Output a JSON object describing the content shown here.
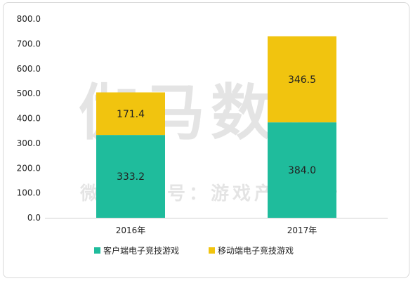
{
  "chart_data": {
    "type": "bar",
    "stacked": true,
    "categories": [
      "2016年",
      "2017年"
    ],
    "series": [
      {
        "name": "客户端电子竞技游戏",
        "values": [
          333.2,
          384.0
        ],
        "labels": [
          "333.2",
          "384.0"
        ],
        "color": "#1fbc9c"
      },
      {
        "name": "移动端电子竞技游戏",
        "values": [
          171.4,
          346.5
        ],
        "labels": [
          "171.4",
          "346.5"
        ],
        "color": "#f1c40f"
      }
    ],
    "ylim": [
      0,
      800
    ],
    "yticks": [
      "0.0",
      "100.0",
      "200.0",
      "300.0",
      "400.0",
      "500.0",
      "600.0",
      "700.0",
      "800.0"
    ],
    "grid": false,
    "legend_position": "bottom"
  },
  "watermark": {
    "main": "伽马数据",
    "sub": "微信公众号：游戏产业报告"
  }
}
